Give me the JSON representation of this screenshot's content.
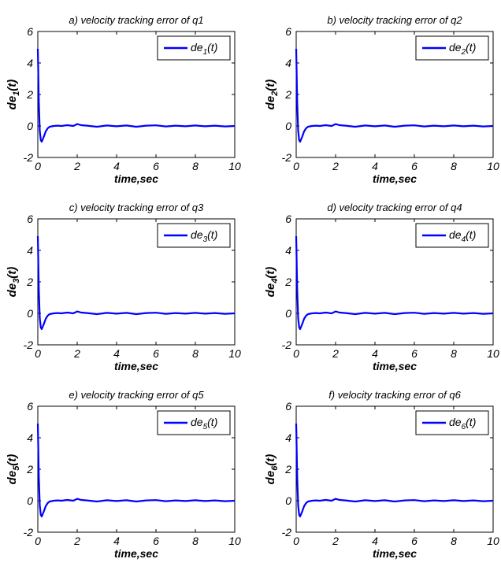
{
  "chart_data": [
    {
      "type": "line",
      "title": "a) velocity tracking error of q1",
      "xlabel": "time,sec",
      "ylabel": {
        "main": "de",
        "sub": "1",
        "suffix": "(t)"
      },
      "xlim": [
        0,
        10
      ],
      "ylim": [
        -2,
        6
      ],
      "xticks": [
        "0",
        "2",
        "4",
        "6",
        "8",
        "10"
      ],
      "yticks": [
        "-2",
        "0",
        "2",
        "4",
        "6"
      ],
      "legend": {
        "position": "top-right",
        "entries": [
          {
            "main": "de",
            "sub": "1",
            "suffix": "(t)"
          }
        ]
      },
      "series": [
        {
          "color": "#0000ff",
          "x": [
            0,
            0.05,
            0.1,
            0.15,
            0.2,
            0.3,
            0.4,
            0.5,
            0.6,
            0.8,
            1.0,
            1.2,
            1.5,
            1.8,
            2.0,
            2.2,
            2.5,
            3.0,
            3.5,
            4.0,
            4.5,
            5.0,
            5.5,
            6.0,
            6.5,
            7.0,
            7.5,
            8.0,
            8.5,
            9.0,
            9.5,
            10.0
          ],
          "y": [
            4.9,
            1.5,
            -0.3,
            -0.9,
            -1.0,
            -0.7,
            -0.35,
            -0.15,
            -0.05,
            0.0,
            0.02,
            0.0,
            0.05,
            0.0,
            0.12,
            0.05,
            0.02,
            -0.05,
            0.03,
            -0.02,
            0.03,
            -0.05,
            0.02,
            0.04,
            -0.03,
            0.02,
            -0.02,
            0.03,
            -0.02,
            0.02,
            -0.03,
            0.0
          ]
        }
      ]
    },
    {
      "type": "line",
      "title": "b) velocity tracking error of q2",
      "xlabel": "time,sec",
      "ylabel": {
        "main": "de",
        "sub": "2",
        "suffix": "(t)"
      },
      "xlim": [
        0,
        10
      ],
      "ylim": [
        -2,
        6
      ],
      "xticks": [
        "0",
        "2",
        "4",
        "6",
        "8",
        "10"
      ],
      "yticks": [
        "-2",
        "0",
        "2",
        "4",
        "6"
      ],
      "legend": {
        "position": "top-right",
        "entries": [
          {
            "main": "de",
            "sub": "2",
            "suffix": "(t)"
          }
        ]
      },
      "series": [
        {
          "color": "#0000ff",
          "x": [
            0,
            0.05,
            0.1,
            0.15,
            0.2,
            0.3,
            0.4,
            0.5,
            0.6,
            0.8,
            1.0,
            1.2,
            1.5,
            1.8,
            2.0,
            2.2,
            2.5,
            3.0,
            3.5,
            4.0,
            4.5,
            5.0,
            5.5,
            6.0,
            6.5,
            7.0,
            7.5,
            8.0,
            8.5,
            9.0,
            9.5,
            10.0
          ],
          "y": [
            4.9,
            1.5,
            -0.3,
            -0.9,
            -1.0,
            -0.7,
            -0.35,
            -0.15,
            -0.05,
            0.0,
            0.02,
            0.0,
            0.05,
            0.0,
            0.12,
            0.05,
            0.02,
            -0.05,
            0.03,
            -0.02,
            0.03,
            -0.05,
            0.02,
            0.04,
            -0.03,
            0.02,
            -0.02,
            0.03,
            -0.02,
            0.02,
            -0.03,
            0.0
          ]
        }
      ]
    },
    {
      "type": "line",
      "title": "c) velocity tracking error of q3",
      "xlabel": "time,sec",
      "ylabel": {
        "main": "de",
        "sub": "3",
        "suffix": "(t)"
      },
      "xlim": [
        0,
        10
      ],
      "ylim": [
        -2,
        6
      ],
      "xticks": [
        "0",
        "2",
        "4",
        "6",
        "8",
        "10"
      ],
      "yticks": [
        "-2",
        "0",
        "2",
        "4",
        "6"
      ],
      "legend": {
        "position": "top-right",
        "entries": [
          {
            "main": "de",
            "sub": "3",
            "suffix": "(t)"
          }
        ]
      },
      "series": [
        {
          "color": "#0000ff",
          "x": [
            0,
            0.05,
            0.1,
            0.15,
            0.2,
            0.3,
            0.4,
            0.5,
            0.6,
            0.8,
            1.0,
            1.2,
            1.5,
            1.8,
            2.0,
            2.2,
            2.5,
            3.0,
            3.5,
            4.0,
            4.5,
            5.0,
            5.5,
            6.0,
            6.5,
            7.0,
            7.5,
            8.0,
            8.5,
            9.0,
            9.5,
            10.0
          ],
          "y": [
            4.9,
            1.5,
            -0.3,
            -0.9,
            -1.0,
            -0.7,
            -0.35,
            -0.15,
            -0.05,
            0.0,
            0.02,
            0.0,
            0.05,
            0.0,
            0.12,
            0.05,
            0.02,
            -0.05,
            0.03,
            -0.02,
            0.03,
            -0.05,
            0.02,
            0.04,
            -0.03,
            0.02,
            -0.02,
            0.03,
            -0.02,
            0.02,
            -0.03,
            0.0
          ]
        }
      ]
    },
    {
      "type": "line",
      "title": "d) velocity tracking error of q4",
      "xlabel": "time,sec",
      "ylabel": {
        "main": "de",
        "sub": "4",
        "suffix": "(t)"
      },
      "xlim": [
        0,
        10
      ],
      "ylim": [
        -2,
        6
      ],
      "xticks": [
        "0",
        "2",
        "4",
        "6",
        "8",
        "10"
      ],
      "yticks": [
        "-2",
        "0",
        "2",
        "4",
        "6"
      ],
      "legend": {
        "position": "top-right",
        "entries": [
          {
            "main": "de",
            "sub": "4",
            "suffix": "(t)"
          }
        ]
      },
      "series": [
        {
          "color": "#0000ff",
          "x": [
            0,
            0.05,
            0.1,
            0.15,
            0.2,
            0.3,
            0.4,
            0.5,
            0.6,
            0.8,
            1.0,
            1.2,
            1.5,
            1.8,
            2.0,
            2.2,
            2.5,
            3.0,
            3.5,
            4.0,
            4.5,
            5.0,
            5.5,
            6.0,
            6.5,
            7.0,
            7.5,
            8.0,
            8.5,
            9.0,
            9.5,
            10.0
          ],
          "y": [
            4.9,
            1.5,
            -0.3,
            -0.9,
            -1.0,
            -0.7,
            -0.35,
            -0.15,
            -0.05,
            0.0,
            0.02,
            0.0,
            0.05,
            0.0,
            0.12,
            0.05,
            0.02,
            -0.05,
            0.03,
            -0.02,
            0.03,
            -0.05,
            0.02,
            0.04,
            -0.03,
            0.02,
            -0.02,
            0.03,
            -0.02,
            0.02,
            -0.03,
            0.0
          ]
        }
      ]
    },
    {
      "type": "line",
      "title": "e) velocity tracking error of q5",
      "xlabel": "time,sec",
      "ylabel": {
        "main": "de",
        "sub": "5",
        "suffix": "(t)"
      },
      "xlim": [
        0,
        10
      ],
      "ylim": [
        -2,
        6
      ],
      "xticks": [
        "0",
        "2",
        "4",
        "6",
        "8",
        "10"
      ],
      "yticks": [
        "-2",
        "0",
        "2",
        "4",
        "6"
      ],
      "legend": {
        "position": "top-right",
        "entries": [
          {
            "main": "de",
            "sub": "5",
            "suffix": "(t)"
          }
        ]
      },
      "series": [
        {
          "color": "#0000ff",
          "x": [
            0,
            0.05,
            0.1,
            0.15,
            0.2,
            0.3,
            0.4,
            0.5,
            0.6,
            0.8,
            1.0,
            1.2,
            1.5,
            1.8,
            2.0,
            2.2,
            2.5,
            3.0,
            3.5,
            4.0,
            4.5,
            5.0,
            5.5,
            6.0,
            6.5,
            7.0,
            7.5,
            8.0,
            8.5,
            9.0,
            9.5,
            10.0
          ],
          "y": [
            4.9,
            1.5,
            -0.3,
            -0.9,
            -1.0,
            -0.7,
            -0.35,
            -0.15,
            -0.05,
            0.0,
            0.02,
            0.0,
            0.05,
            0.0,
            0.12,
            0.05,
            0.02,
            -0.05,
            0.03,
            -0.02,
            0.03,
            -0.05,
            0.02,
            0.04,
            -0.03,
            0.02,
            -0.02,
            0.03,
            -0.02,
            0.02,
            -0.03,
            0.0
          ]
        }
      ]
    },
    {
      "type": "line",
      "title": "f) velocity tracking error of q6",
      "xlabel": "time,sec",
      "ylabel": {
        "main": "de",
        "sub": "6",
        "suffix": "(t)"
      },
      "xlim": [
        0,
        10
      ],
      "ylim": [
        -2,
        6
      ],
      "xticks": [
        "0",
        "2",
        "4",
        "6",
        "8",
        "10"
      ],
      "yticks": [
        "-2",
        "0",
        "2",
        "4",
        "6"
      ],
      "legend": {
        "position": "top-right",
        "entries": [
          {
            "main": "de",
            "sub": "6",
            "suffix": "(t)"
          }
        ]
      },
      "series": [
        {
          "color": "#0000ff",
          "x": [
            0,
            0.05,
            0.1,
            0.15,
            0.2,
            0.3,
            0.4,
            0.5,
            0.6,
            0.8,
            1.0,
            1.2,
            1.5,
            1.8,
            2.0,
            2.2,
            2.5,
            3.0,
            3.5,
            4.0,
            4.5,
            5.0,
            5.5,
            6.0,
            6.5,
            7.0,
            7.5,
            8.0,
            8.5,
            9.0,
            9.5,
            10.0
          ],
          "y": [
            4.9,
            1.5,
            -0.3,
            -0.9,
            -1.0,
            -0.7,
            -0.35,
            -0.15,
            -0.05,
            0.0,
            0.02,
            0.0,
            0.05,
            0.0,
            0.12,
            0.05,
            0.02,
            -0.05,
            0.03,
            -0.02,
            0.03,
            -0.05,
            0.02,
            0.04,
            -0.03,
            0.02,
            -0.02,
            0.03,
            -0.02,
            0.02,
            -0.03,
            0.0
          ]
        }
      ]
    }
  ]
}
